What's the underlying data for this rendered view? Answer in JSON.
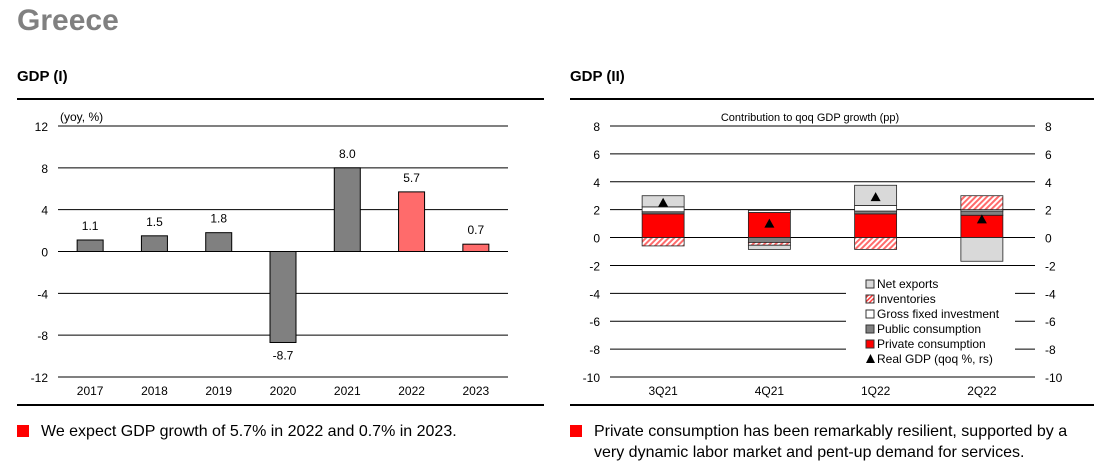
{
  "page": {
    "title": "Greece",
    "left_section_title": "GDP (I)",
    "right_section_title": "GDP (II)",
    "left_bullet": "We expect GDP growth of 5.7% in 2022 and 0.7% in 2023.",
    "right_bullet": "Private consumption has been remarkably resilient, supported by a very dynamic labor market and pent-up demand for services.",
    "bullet_color": "#ff0000"
  },
  "chart_data": [
    {
      "type": "bar",
      "title": "GDP (I)",
      "unit_label": "(yoy, %)",
      "xlabel": "",
      "ylabel": "(yoy, %)",
      "ylim": [
        -12,
        12
      ],
      "yticks": [
        12,
        8,
        4,
        0,
        -4,
        -8,
        -12
      ],
      "grid": true,
      "categories": [
        "2017",
        "2018",
        "2019",
        "2020",
        "2021",
        "2022",
        "2023"
      ],
      "values": [
        1.1,
        1.5,
        1.8,
        -8.7,
        8.0,
        5.7,
        0.7
      ],
      "labels": [
        "1.1",
        "1.5",
        "1.8",
        "-8.7",
        "8.0",
        "5.7",
        "0.7"
      ],
      "forecast": [
        false,
        false,
        false,
        false,
        false,
        true,
        true
      ],
      "colors": {
        "actual": "#808080",
        "forecast": "#ff6b6b"
      }
    },
    {
      "type": "bar",
      "stacked": true,
      "title": "GDP (II)",
      "subtitle": "Contribution to qoq GDP growth (pp)",
      "ylim": [
        -10,
        8
      ],
      "yticks": [
        8,
        6,
        4,
        2,
        0,
        -2,
        -4,
        -6,
        -8,
        -10
      ],
      "y2lim": [
        -10,
        8
      ],
      "grid": true,
      "legend_position": "bottom-right",
      "categories": [
        "3Q21",
        "4Q21",
        "1Q22",
        "2Q22"
      ],
      "series": [
        {
          "name": "Private consumption",
          "values": [
            1.7,
            1.8,
            1.7,
            1.6
          ],
          "color": "#ff0000",
          "pattern": "solid"
        },
        {
          "name": "Public consumption",
          "values": [
            0.15,
            -0.35,
            0.2,
            0.3
          ],
          "color": "#808080",
          "pattern": "solid"
        },
        {
          "name": "Gross fixed investment",
          "values": [
            0.35,
            0.15,
            0.4,
            0.1
          ],
          "color": "#ffffff",
          "pattern": "solid"
        },
        {
          "name": "Inventories",
          "values": [
            -0.6,
            -0.2,
            -0.85,
            1.0
          ],
          "color": "#ff6b6b",
          "pattern": "hatch"
        },
        {
          "name": "Net exports",
          "values": [
            0.8,
            -0.3,
            1.45,
            -1.7
          ],
          "color": "#d9d9d9",
          "pattern": "solid"
        }
      ],
      "line_series": {
        "name": "Real GDP (qoq %, rs)",
        "values": [
          2.5,
          1.0,
          2.9,
          1.3
        ],
        "marker": "triangle",
        "color": "#000000"
      },
      "legend": [
        "Net exports",
        "Inventories",
        "Gross fixed investment",
        "Public consumption",
        "Private consumption",
        "Real GDP (qoq %, rs)"
      ]
    }
  ]
}
